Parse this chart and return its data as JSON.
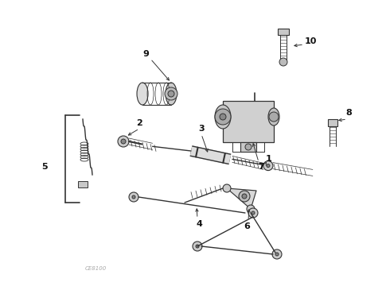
{
  "background_color": "#ffffff",
  "watermark": "CE8100",
  "figsize": [
    4.9,
    3.6
  ],
  "dpi": 100,
  "line_color": "#333333",
  "label_color": "#111111"
}
